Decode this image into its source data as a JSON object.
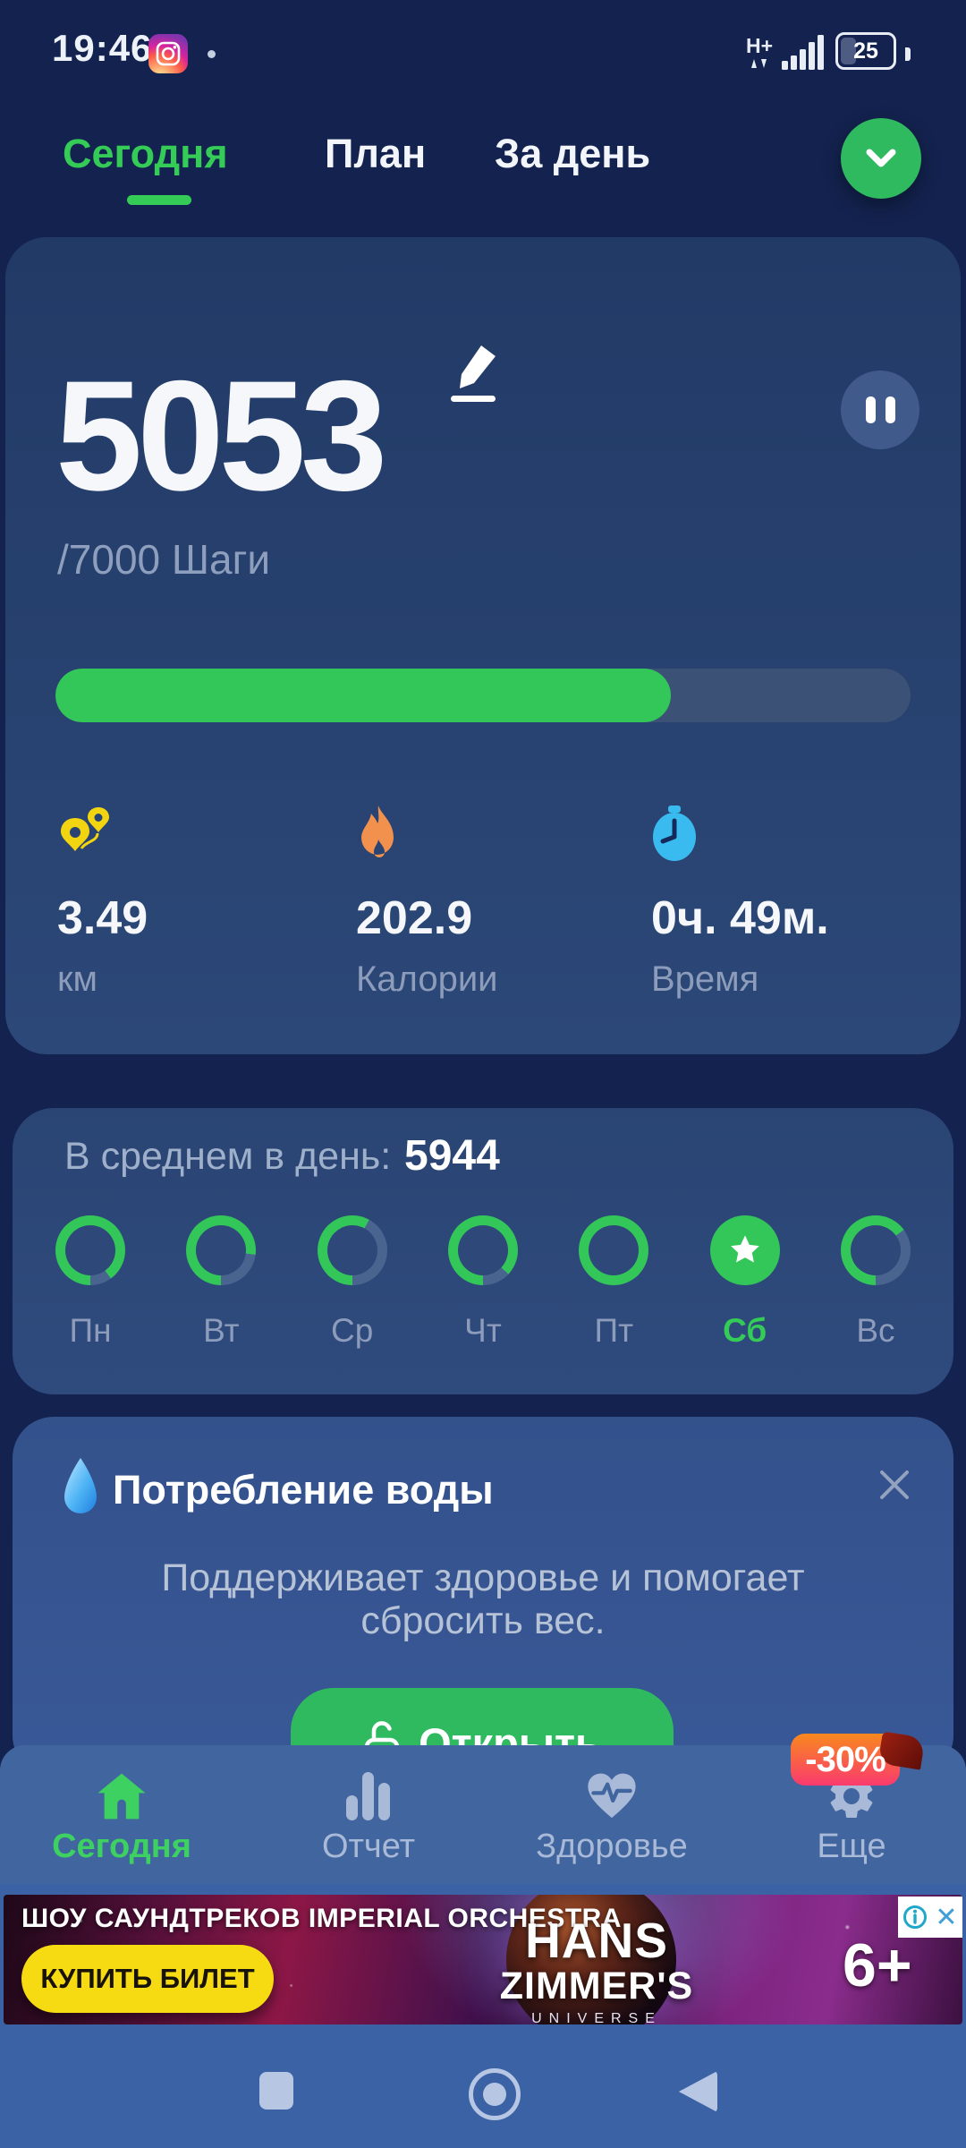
{
  "colors": {
    "page_bg": "#13224E",
    "accent_green": "#33C75A",
    "fab_green": "#2FBA60",
    "ring_track": "#49648E",
    "inactive_gray_blue": "#A9BAD8",
    "muted_text": "#8E9FBE",
    "nav_bg": "#41659F",
    "android_bg": "#3A62A4",
    "badge_gradient_top": "#F8891E",
    "badge_gradient_bottom": "#FA3A6E",
    "flame_orange": "#F2914E",
    "stopwatch_blue": "#3ABBF0",
    "pins_yellow": "#F2D410",
    "ad_cta_yellow": "#F6DA12"
  },
  "status_bar": {
    "time": "19:46",
    "network_type": "H+",
    "battery_level": "25"
  },
  "header": {
    "tabs": [
      {
        "label": "Сегодня",
        "active": true
      },
      {
        "label": "План",
        "active": false
      },
      {
        "label": "За день",
        "active": false
      }
    ]
  },
  "steps_card": {
    "steps": "5053",
    "goal": "/7000 Шаги",
    "progress_pct": 72,
    "stats": [
      {
        "icon": "route-pins-icon",
        "value": "3.49",
        "label": "км"
      },
      {
        "icon": "flame-icon",
        "value": "202.9",
        "label": "Калории"
      },
      {
        "icon": "stopwatch-icon",
        "value": "0ч. 49м.",
        "label": "Время"
      }
    ]
  },
  "average_card": {
    "label": "В среднем в день:",
    "value": "5944",
    "days": [
      {
        "label": "Пн",
        "progress": 90
      },
      {
        "label": "Вт",
        "progress": 77
      },
      {
        "label": "Ср",
        "progress": 58
      },
      {
        "label": "Чт",
        "progress": 87
      },
      {
        "label": "Пт",
        "progress": 100
      },
      {
        "label": "Сб",
        "today": true
      },
      {
        "label": "Вс",
        "progress": 65
      }
    ]
  },
  "water_card": {
    "title": "Потребление воды",
    "body_line1": "Поддерживает здоровье и помогает",
    "body_line2": "сбросить вес.",
    "button_label": "Открыть"
  },
  "bottom_nav": {
    "badge": "-30%",
    "items": [
      {
        "label": "Сегодня",
        "icon": "home-icon",
        "active": true
      },
      {
        "label": "Отчет",
        "icon": "bar-chart-icon",
        "active": false
      },
      {
        "label": "Здоровье",
        "icon": "heart-pulse-icon",
        "active": false
      },
      {
        "label": "Еще",
        "icon": "gear-icon",
        "active": false
      }
    ]
  },
  "ad_banner": {
    "headline": "ШОУ САУНДТРЕКОВ IMPERIAL ORCHESTRA",
    "cta_label": "КУПИТЬ БИЛЕТ",
    "show_title_1": "HANS",
    "show_title_2": "ZIMMER'S",
    "show_title_3": "UNIVERSE",
    "age_rating": "6+"
  }
}
